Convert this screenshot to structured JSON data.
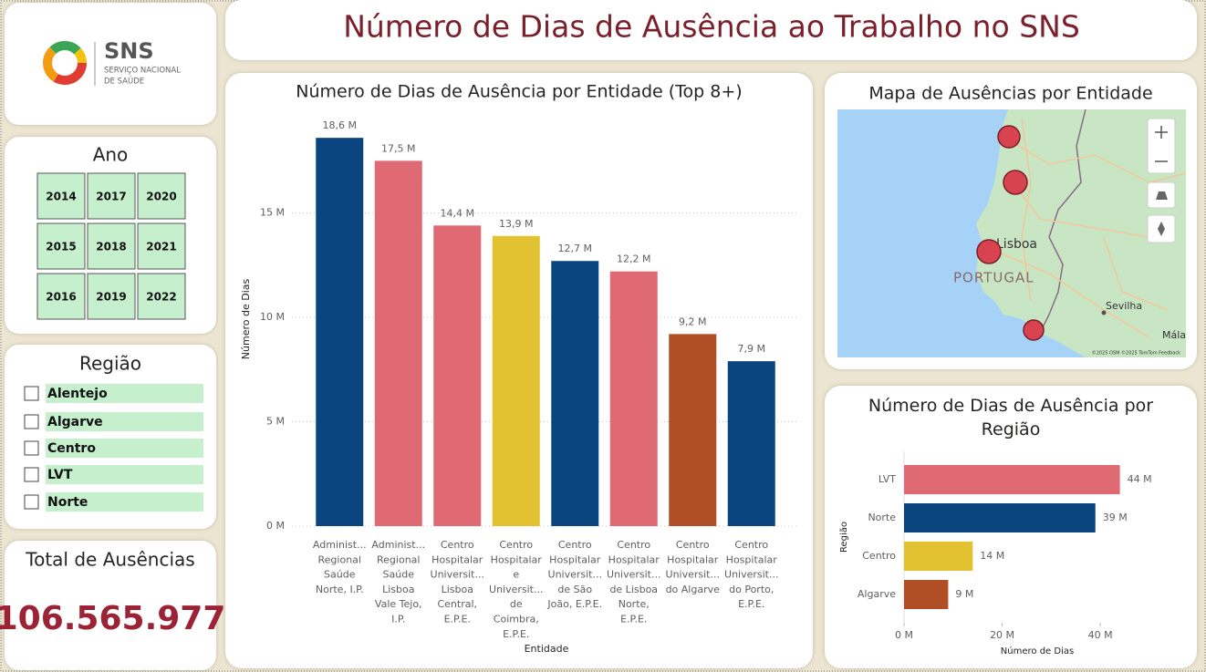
{
  "header": {
    "title": "Número de Dias de Ausência ao Trabalho no SNS"
  },
  "logo": {
    "name": "SNS",
    "line1": "SERVIÇO NACIONAL",
    "line2": "DE SAÚDE"
  },
  "year_slicer": {
    "title": "Ano",
    "options": [
      "2014",
      "2017",
      "2020",
      "2015",
      "2018",
      "2021",
      "2016",
      "2019",
      "2022"
    ]
  },
  "region_slicer": {
    "title": "Região",
    "options": [
      "Alentejo",
      "Algarve",
      "Centro",
      "LVT",
      "Norte"
    ]
  },
  "kpi": {
    "title": "Total de Ausências",
    "value": 106565977,
    "value_label": "106.565.977"
  },
  "map": {
    "title": "Mapa de Ausências por Entidade",
    "labels": [
      "Lisboa",
      "PORTUGAL",
      "Sevilha",
      "Mála"
    ],
    "attribution": "©2025 OSM ©2025 TomTom Feedback"
  },
  "chart_data": [
    {
      "type": "bar",
      "title": "Número de Dias de Ausência por Entidade (Top 8+)",
      "x_label": "Entidade",
      "y_label": "Número de Dias",
      "categories": [
        "Administ...\nRegional\nSaúde\nNorte, I.P.",
        "Administ...\nRegional\nSaúde\nLisboa\nVale Tejo,\nI.P.",
        "Centro\nHospitalar\nUniversit...\nLisboa\nCentral,\nE.P.E.",
        "Centro\nHospitalar\ne\nUniversit...\nde\nCoimbra,\nE.P.E.",
        "Centro\nHospitalar\nUniversit...\nde São\nJoão, E.P.E.",
        "Centro\nHospitalar\nUniversit...\nde Lisboa\nNorte,\nE.P.E.",
        "Centro\nHospitalar\nUniversit...\ndo Algarve",
        "Centro\nHospitalar\nUniversit...\ndo Porto,\nE.P.E."
      ],
      "values": [
        18600000,
        17500000,
        14400000,
        13900000,
        12700000,
        12200000,
        9200000,
        7900000
      ],
      "value_labels": [
        "18,6 M",
        "17,5 M",
        "14,4 M",
        "13,9 M",
        "12,7 M",
        "12,2 M",
        "9,2 M",
        "7,9 M"
      ],
      "colors": [
        "#0b4580",
        "#e06a74",
        "#e06a74",
        "#e3c232",
        "#0b4580",
        "#e06a74",
        "#b04e26",
        "#0b4580"
      ],
      "ylim": [
        0,
        19000000
      ],
      "yticks": [
        {
          "value": 0,
          "label": "0 M"
        },
        {
          "value": 5000000,
          "label": "5 M"
        },
        {
          "value": 10000000,
          "label": "10 M"
        },
        {
          "value": 15000000,
          "label": "15 M"
        }
      ],
      "grid": true
    },
    {
      "type": "hbar",
      "title": "Número de Dias de Ausência por\nRegião",
      "x_label": "Número de Dias",
      "y_label": "Região",
      "categories": [
        "LVT",
        "Norte",
        "Centro",
        "Algarve"
      ],
      "values": [
        44000000,
        39000000,
        14000000,
        9000000
      ],
      "value_labels": [
        "44 M",
        "39 M",
        "14 M",
        "9 M"
      ],
      "colors": [
        "#e06a74",
        "#0b4580",
        "#e3c232",
        "#b04e26"
      ],
      "xlim": [
        0,
        45000000
      ],
      "xticks": [
        {
          "value": 0,
          "label": "0 M"
        },
        {
          "value": 20000000,
          "label": "20 M"
        },
        {
          "value": 40000000,
          "label": "40 M"
        }
      ],
      "grid": false
    }
  ]
}
